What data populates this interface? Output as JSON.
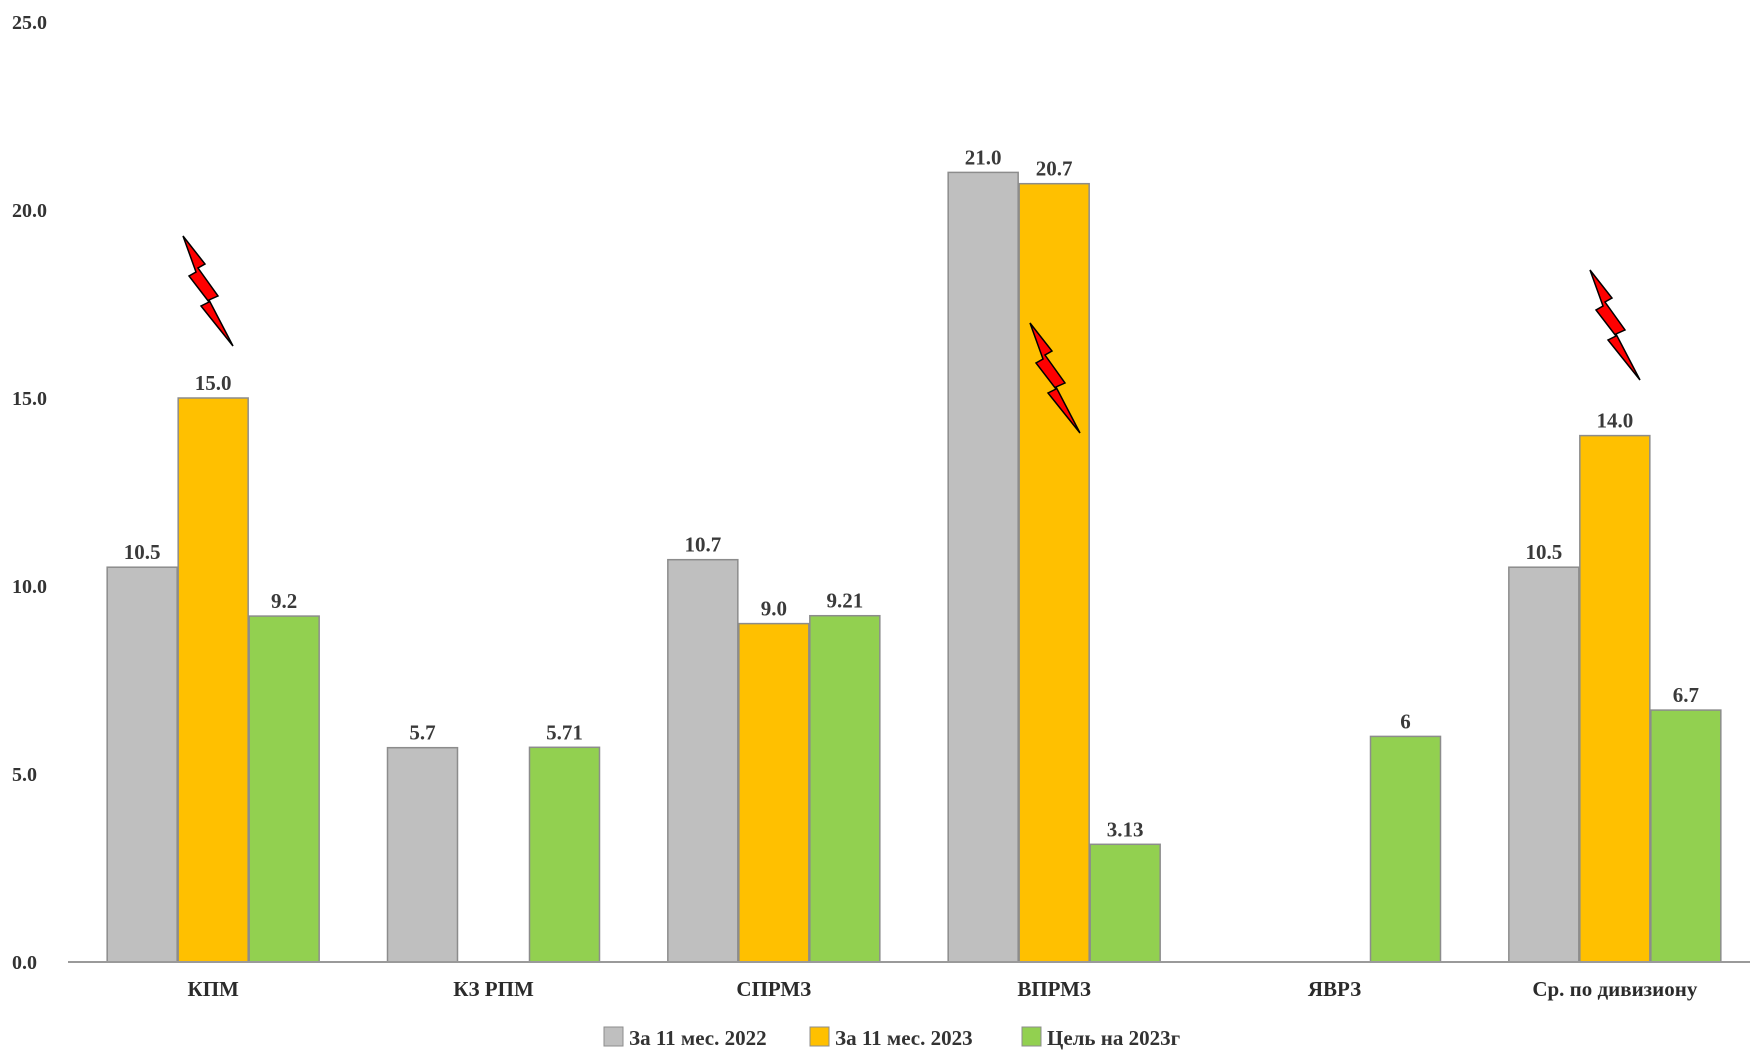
{
  "chart_data": {
    "type": "bar",
    "title": "",
    "xlabel": "",
    "ylabel": "",
    "ylim": [
      0,
      25
    ],
    "yticks": [
      "0.0",
      "5.0",
      "10.0",
      "15.0",
      "20.0",
      "25.0"
    ],
    "grid": false,
    "legend_position": "bottom",
    "categories": [
      "КПМ",
      "КЗ РПМ",
      "СПРМЗ",
      "ВПРМЗ",
      "ЯВРЗ",
      "Ср. по дивизиону"
    ],
    "series": [
      {
        "name": "За 11 мес. 2022",
        "color": "#bfbfbf",
        "values": [
          10.5,
          5.7,
          10.7,
          21.0,
          null,
          10.5
        ],
        "labels": [
          "10.5",
          "5.7",
          "10.7",
          "21.0",
          "",
          "10.5"
        ]
      },
      {
        "name": "За 11 мес. 2023",
        "color": "#ffc000",
        "values": [
          15.0,
          null,
          9.0,
          20.7,
          null,
          14.0
        ],
        "labels": [
          "15.0",
          "",
          "9.0",
          "20.7",
          "",
          "14.0"
        ]
      },
      {
        "name": "Цель на 2023г",
        "color": "#92d050",
        "values": [
          9.2,
          5.71,
          9.21,
          3.13,
          6,
          6.7
        ],
        "labels": [
          "9.2",
          "5.71",
          "9.21",
          "3.13",
          "6",
          "6.7"
        ]
      }
    ],
    "annotations": [
      {
        "type": "lightning-icon",
        "category": "КПМ",
        "color": "#ff0000"
      },
      {
        "type": "lightning-icon",
        "category": "ВПРМЗ",
        "color": "#ff0000"
      },
      {
        "type": "lightning-icon",
        "category": "Ср. по дивизиону",
        "color": "#ff0000"
      }
    ]
  }
}
